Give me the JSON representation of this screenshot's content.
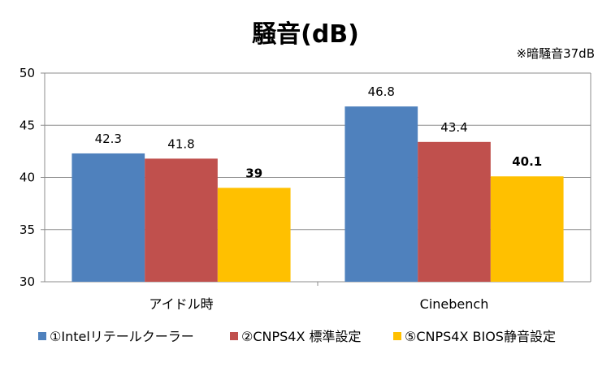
{
  "chart_data": {
    "type": "bar",
    "title": "騒音(dB)",
    "note": "※暗騒音37dB",
    "categories": [
      "アイドル時",
      "Cinebench"
    ],
    "series": [
      {
        "name": "①Intelリテールクーラー",
        "color": "#4F81BD",
        "values": [
          42.3,
          46.8
        ],
        "labels": [
          "42.3",
          "46.8"
        ],
        "bold": false
      },
      {
        "name": "②CNPS4X 標準設定",
        "color": "#C0504D",
        "values": [
          41.8,
          43.4
        ],
        "labels": [
          "41.8",
          "43.4"
        ],
        "bold": false
      },
      {
        "name": "⑤CNPS4X BIOS静音設定",
        "color": "#FFC000",
        "values": [
          39,
          40.1
        ],
        "labels": [
          "39",
          "40.1"
        ],
        "bold": true
      }
    ],
    "ylim": [
      30,
      50
    ],
    "yticks": [
      "30",
      "35",
      "40",
      "45",
      "50"
    ],
    "grid": true,
    "legend_position": "bottom"
  }
}
